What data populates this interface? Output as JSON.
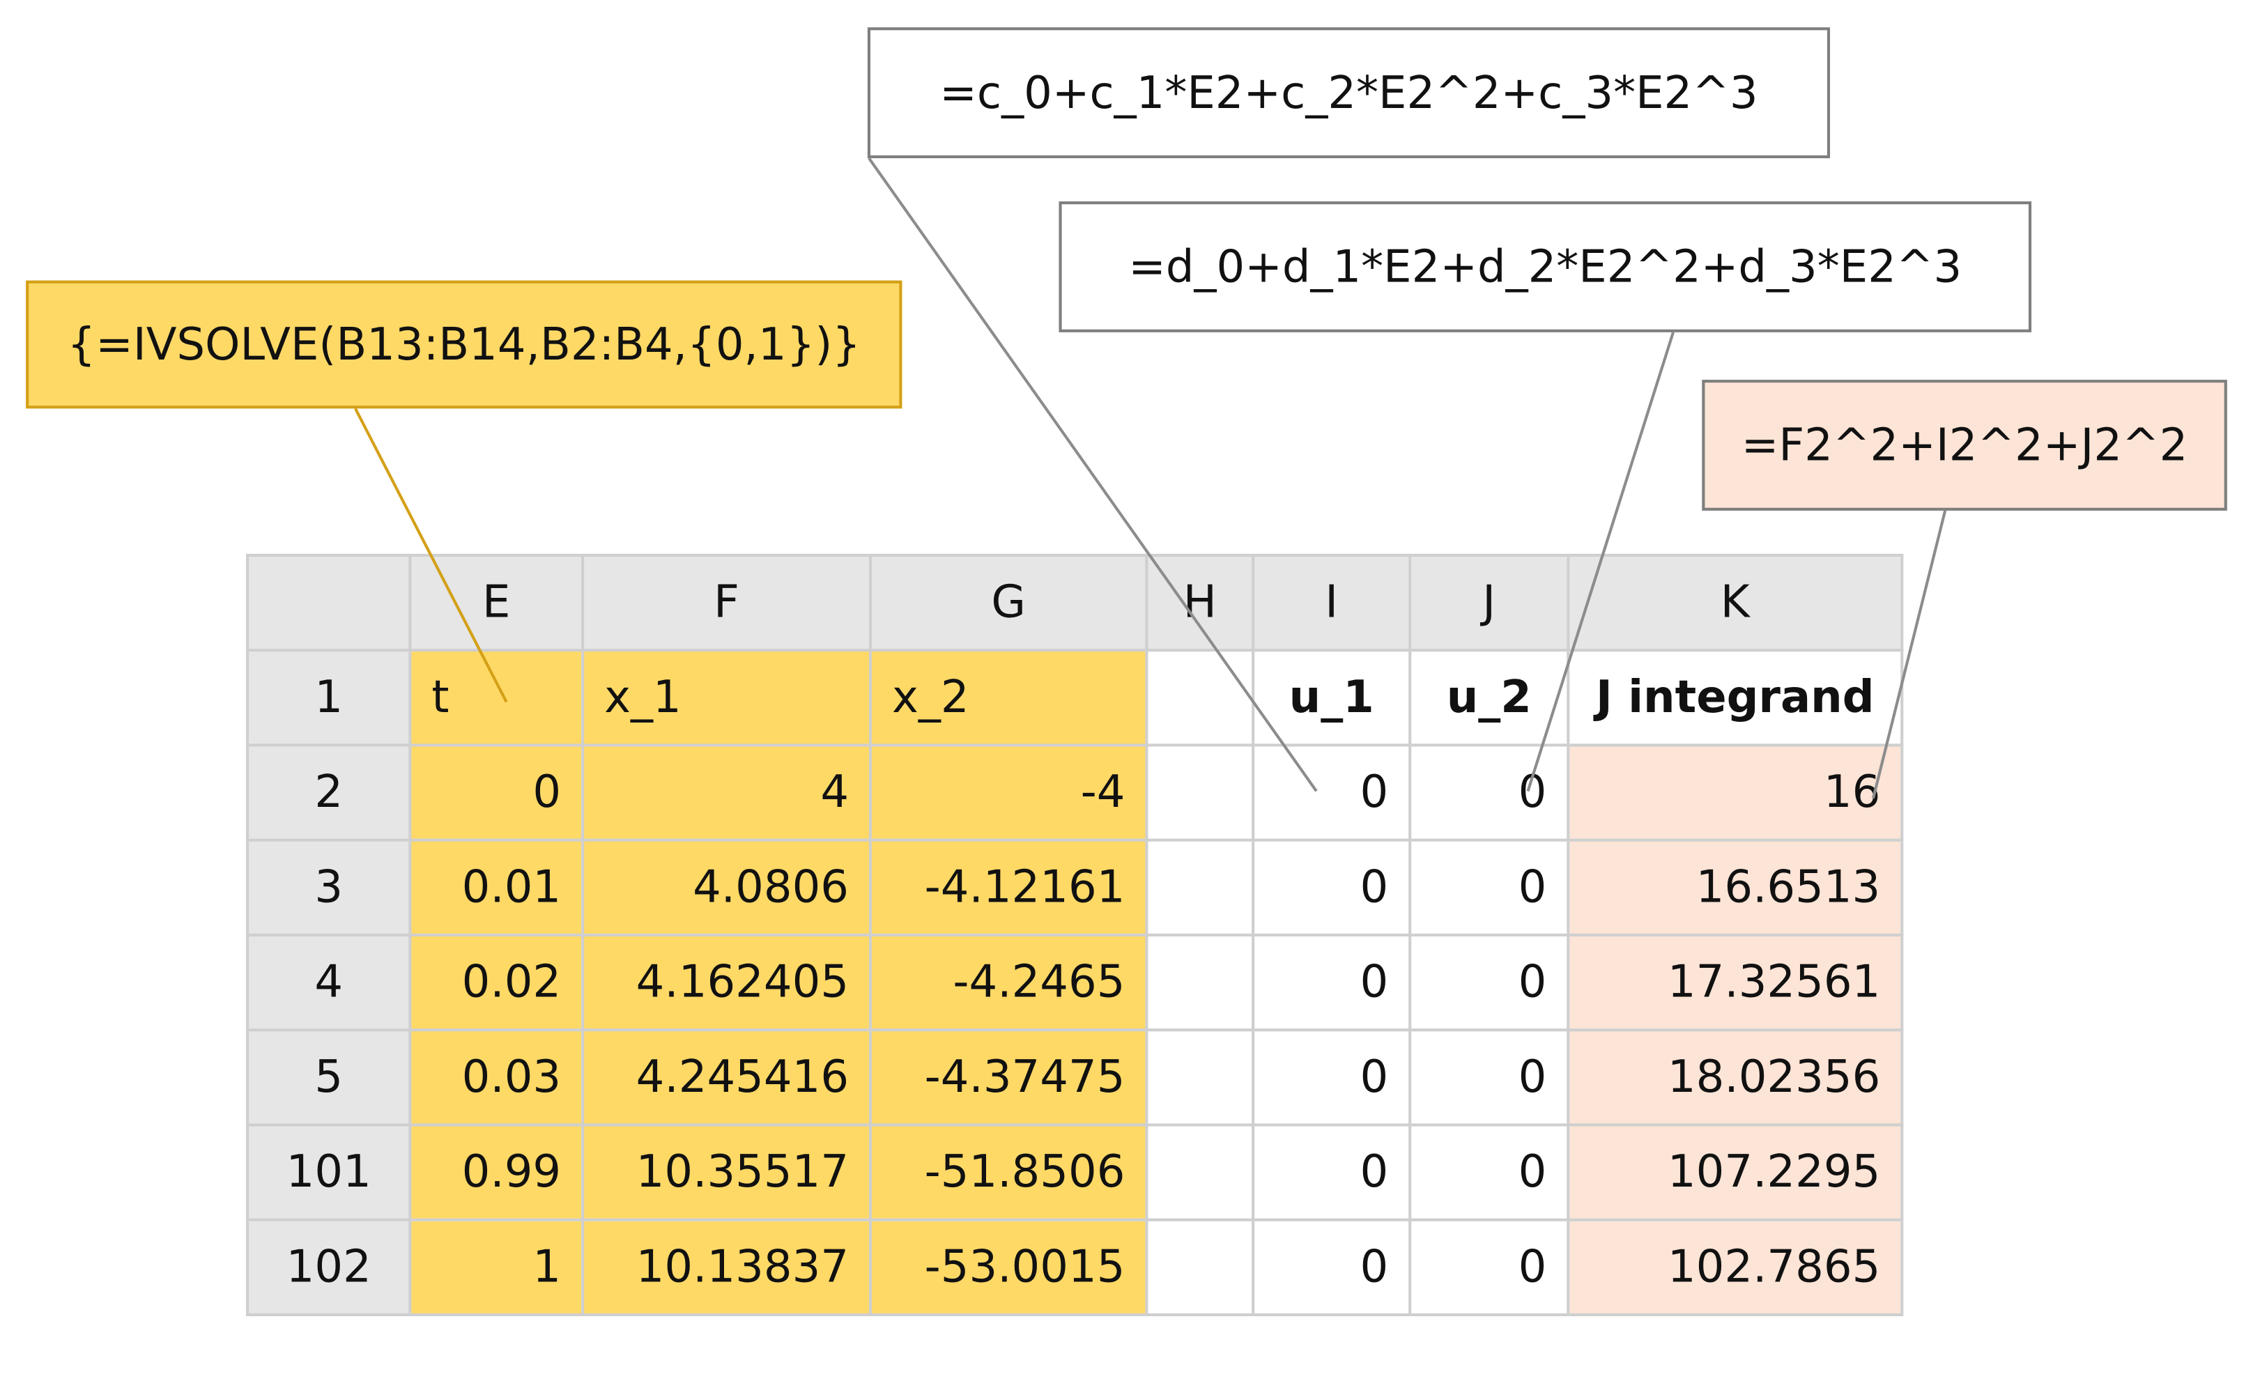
{
  "callouts": {
    "u1_formula": "=c_0+c_1*E2+c_2*E2^2+c_3*E2^3",
    "u2_formula": "=d_0+d_1*E2+d_2*E2^2+d_3*E2^3",
    "ivsolve_formula": "{=IVSOLVE(B13:B14,B2:B4,{0,1})}",
    "integrand_formula": "=F2^2+I2^2+J2^2"
  },
  "columns": [
    "E",
    "F",
    "G",
    "H",
    "I",
    "J",
    "K"
  ],
  "header_row": {
    "row": "1",
    "t": "t",
    "x1": "x_1",
    "x2": "x_2",
    "h": "",
    "u1": "u_1",
    "u2": "u_2",
    "integrand": "J integrand"
  },
  "rows": [
    {
      "row": "2",
      "t": "0",
      "x1": "4",
      "x2": "-4",
      "h": "",
      "u1": "0",
      "u2": "0",
      "integrand": "16"
    },
    {
      "row": "3",
      "t": "0.01",
      "x1": "4.0806",
      "x2": "-4.12161",
      "h": "",
      "u1": "0",
      "u2": "0",
      "integrand": "16.6513"
    },
    {
      "row": "4",
      "t": "0.02",
      "x1": "4.162405",
      "x2": "-4.2465",
      "h": "",
      "u1": "0",
      "u2": "0",
      "integrand": "17.32561"
    },
    {
      "row": "5",
      "t": "0.03",
      "x1": "4.245416",
      "x2": "-4.37475",
      "h": "",
      "u1": "0",
      "u2": "0",
      "integrand": "18.02356"
    },
    {
      "row": "101",
      "t": "0.99",
      "x1": "10.35517",
      "x2": "-51.8506",
      "h": "",
      "u1": "0",
      "u2": "0",
      "integrand": "107.2295"
    },
    {
      "row": "102",
      "t": "1",
      "x1": "10.13837",
      "x2": "-53.0015",
      "h": "",
      "u1": "0",
      "u2": "0",
      "integrand": "102.7865"
    }
  ],
  "colors": {
    "solver_fill": "#ffd966",
    "integrand_fill": "#fce4d6",
    "header_fill": "#e6e6e6",
    "gridline": "#cfcfcf"
  }
}
